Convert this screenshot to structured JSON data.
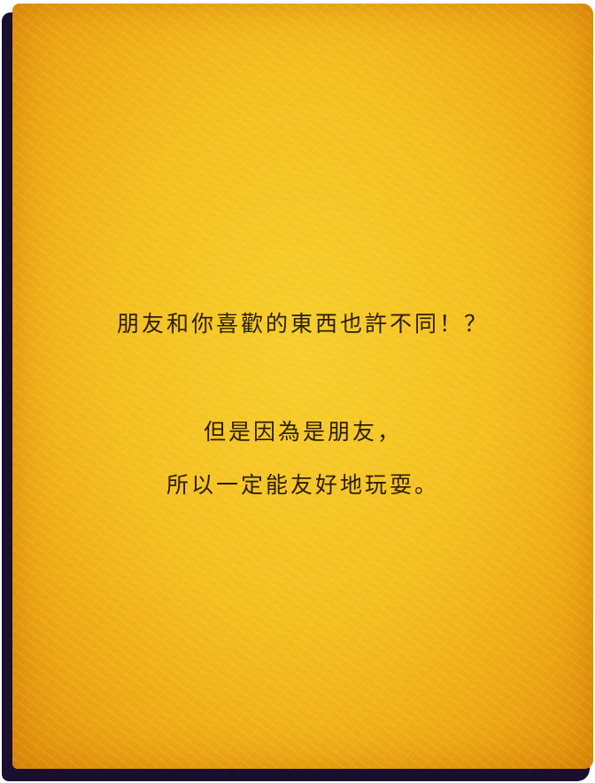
{
  "paper": {
    "colors": {
      "paper_center": "#f7cf2c",
      "paper_edge": "#e08e0c",
      "border": "#1a0f2e",
      "text": "#2b1d08"
    },
    "lines": [
      "朋友和你喜歡的東西也許不同！？",
      "但是因為是朋友，",
      "所以一定能友好地玩耍。"
    ]
  }
}
